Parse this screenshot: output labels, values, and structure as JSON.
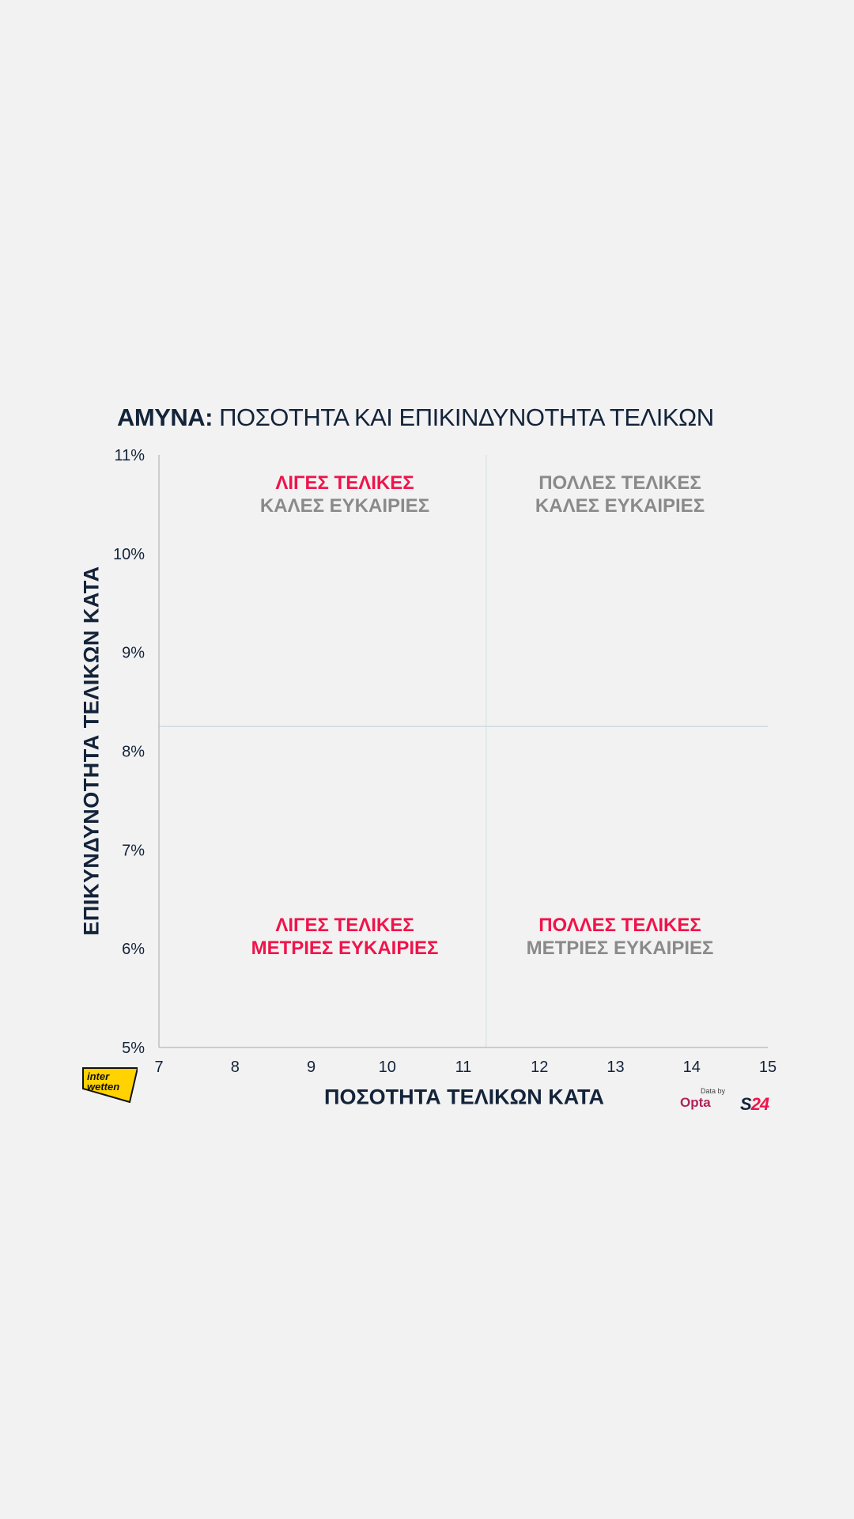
{
  "title": {
    "lead": "ΑΜΥΝΑ:",
    "rest": "ΠΟΣΟΤΗΤΑ ΚΑΙ ΕΠΙΚΙΝΔΥΝΟΤΗΤΑ ΤΕΛΙΚΩΝ"
  },
  "chart_data": {
    "type": "scatter",
    "title": "ΑΜΥΝΑ: ΠΟΣΟΤΗΤΑ ΚΑΙ ΕΠΙΚΙΝΔΥΝΟΤΗΤΑ ΤΕΛΙΚΩΝ",
    "xlabel": "ΠΟΣΟΤΗΤΑ ΤΕΛΙΚΩΝ ΚΑΤΑ",
    "ylabel": "ΕΠΙΚΥΝΔΥΝΟΤΗΤΑ ΤΕΛΙΚΩΝ ΚΑΤΑ",
    "xlim": [
      7,
      15
    ],
    "ylim": [
      5,
      11
    ],
    "x_ticks": [
      "7",
      "8",
      "9",
      "10",
      "11",
      "12",
      "13",
      "14",
      "15"
    ],
    "y_ticks": [
      "5%",
      "6%",
      "7%",
      "8%",
      "9%",
      "10%",
      "11%"
    ],
    "x_divider": 11.3,
    "y_divider": 8.25,
    "points": [],
    "quadrants": {
      "top_left": {
        "line1": "ΛΙΓΕΣ ΤΕΛΙΚΕΣ",
        "line2": "ΚΑΛΕΣ ΕΥΚΑΙΡΙΕΣ"
      },
      "top_right": {
        "line1": "ΠΟΛΛΕΣ ΤΕΛΙΚΕΣ",
        "line2": "ΚΑΛΕΣ ΕΥΚΑΙΡΙΕΣ"
      },
      "bottom_left": {
        "line1": "ΛΙΓΕΣ ΤΕΛΙΚΕΣ",
        "line2": "ΜΕΤΡΙΕΣ ΕΥΚΑΙΡΙΕΣ"
      },
      "bottom_right": {
        "line1": "ΠΟΛΛΕΣ ΤΕΛΙΚΕΣ",
        "line2": "ΜΕΤΡΙΕΣ ΕΥΚΑΙΡΙΕΣ"
      }
    }
  },
  "logos": {
    "interwetten": "inter wetten",
    "data_by": "Data by",
    "opta": "Opta",
    "s24_a": "S",
    "s24_b": "24"
  },
  "colors": {
    "red": "#f0134a",
    "grey": "#8a8a8a",
    "navy": "#13233a"
  }
}
